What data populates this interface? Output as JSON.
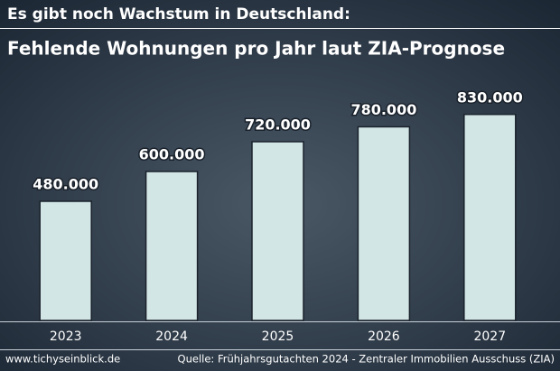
{
  "chart_data": {
    "type": "bar",
    "title": "Es gibt noch Wachstum in Deutschland:",
    "subtitle": "Fehlende Wohnungen pro Jahr laut ZIA-Prognose",
    "categories": [
      "2023",
      "2024",
      "2025",
      "2026",
      "2027"
    ],
    "values": [
      480000,
      600000,
      720000,
      780000,
      830000
    ],
    "value_labels": [
      "480.000",
      "600.000",
      "720.000",
      "780.000",
      "830.000"
    ],
    "color": "#d3e6e6",
    "ylim": [
      0,
      1000000
    ],
    "footer_left": "www.tichyseinblick.de",
    "footer_right": "Quelle: Frühjahrsgutachten 2024 - Zentraler Immobilien Ausschuss (ZIA)"
  }
}
